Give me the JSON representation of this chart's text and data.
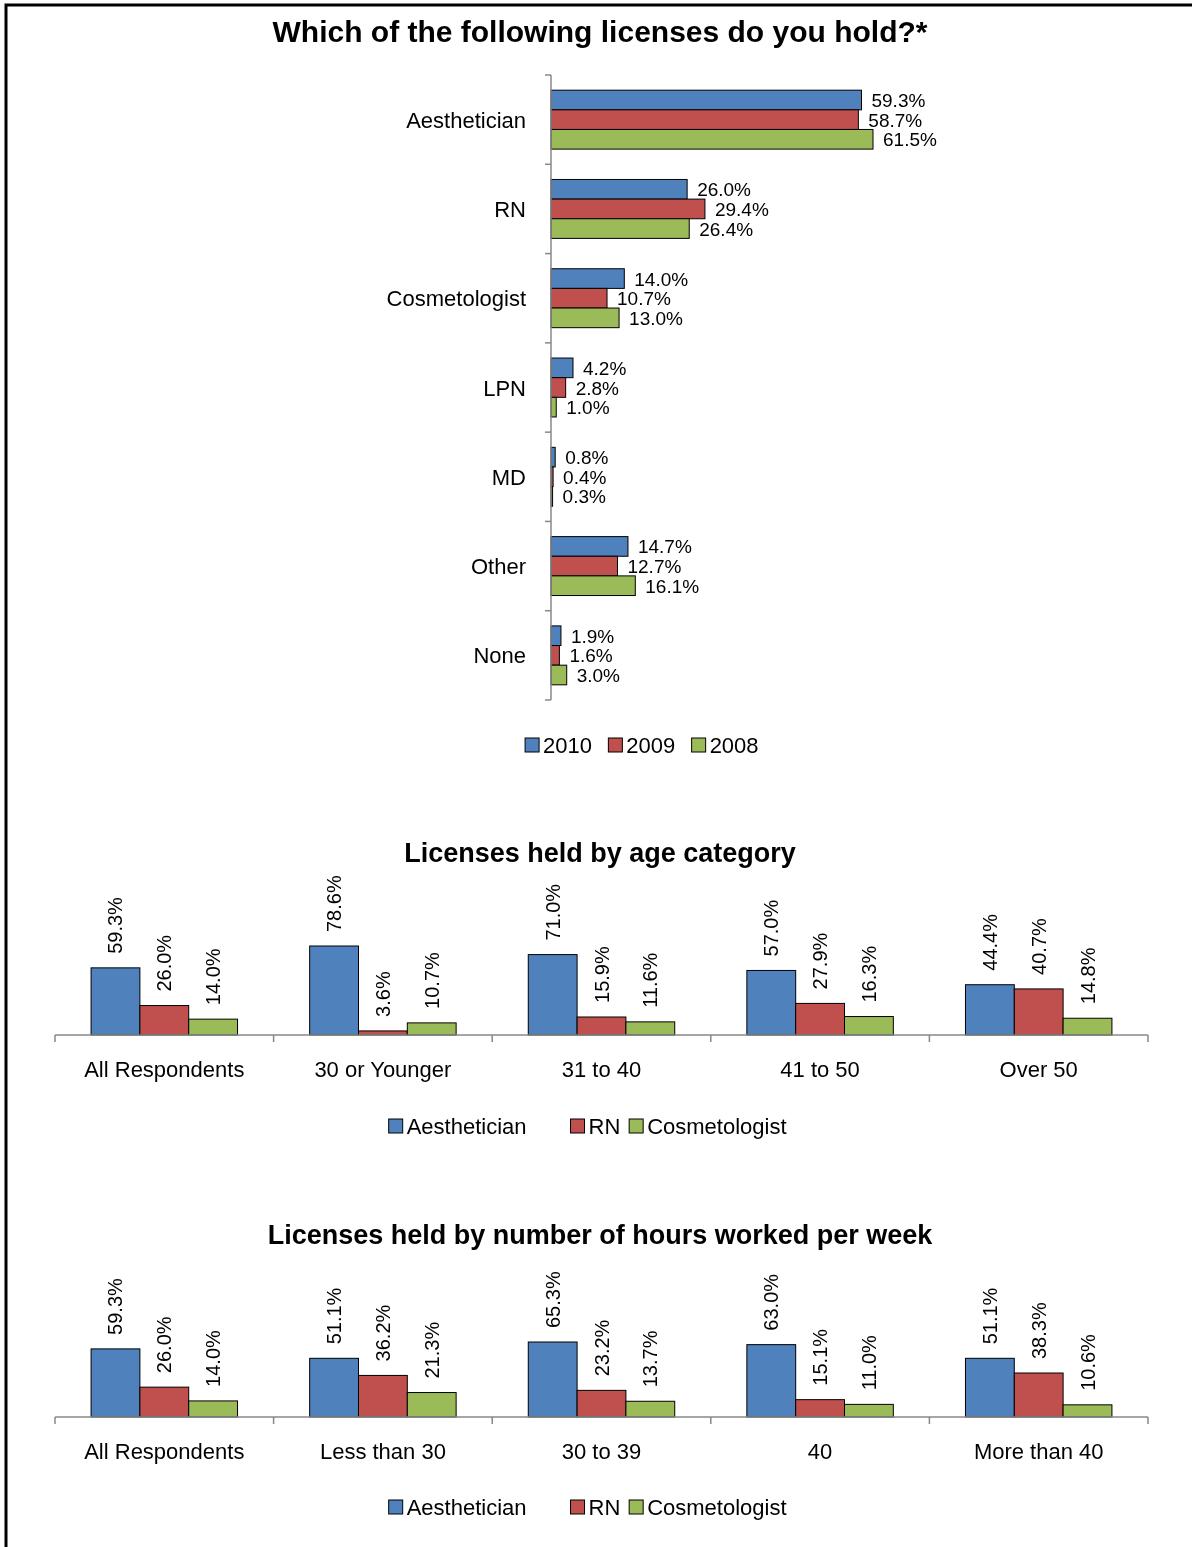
{
  "chart_data": [
    {
      "type": "bar",
      "orientation": "horizontal",
      "title": "Which of the following licenses do you hold?*",
      "categories": [
        "Aesthetician",
        "RN",
        "Cosmetologist",
        "LPN",
        "MD",
        "Other",
        "None"
      ],
      "legend": "bottom",
      "series": [
        {
          "name": "2010",
          "color": "#4f81bd",
          "values": [
            59.3,
            26.0,
            14.0,
            4.2,
            0.8,
            14.7,
            1.9
          ],
          "value_labels": [
            "59.3%",
            "26.0%",
            "14.0%",
            "4.2%",
            "0.8%",
            "14.7%",
            "1.9%"
          ]
        },
        {
          "name": "2009",
          "color": "#c0504d",
          "values": [
            58.7,
            29.4,
            10.7,
            2.8,
            0.4,
            12.7,
            1.6
          ],
          "value_labels": [
            "58.7%",
            "29.4%",
            "10.7%",
            "2.8%",
            "0.4%",
            "12.7%",
            "1.6%"
          ]
        },
        {
          "name": "2008",
          "color": "#9bbb59",
          "values": [
            61.5,
            26.4,
            13.0,
            1.0,
            0.3,
            16.1,
            3.0
          ],
          "value_labels": [
            "61.5%",
            "26.4%",
            "13.0%",
            "1.0%",
            "0.3%",
            "16.1%",
            "3.0%"
          ]
        }
      ]
    },
    {
      "type": "bar",
      "title": "Licenses held by age category",
      "categories": [
        "All Respondents",
        "30 or Younger",
        "31 to 40",
        "41 to 50",
        "Over 50"
      ],
      "legend": "bottom",
      "series": [
        {
          "name": "Aesthetician",
          "color": "#4f81bd",
          "values": [
            59.3,
            78.6,
            71.0,
            57.0,
            44.4
          ],
          "value_labels": [
            "59.3%",
            "78.6%",
            "71.0%",
            "57.0%",
            "44.4%"
          ]
        },
        {
          "name": "RN",
          "color": "#c0504d",
          "values": [
            26.0,
            3.6,
            15.9,
            27.9,
            40.7
          ],
          "value_labels": [
            "26.0%",
            "3.6%",
            "15.9%",
            "27.9%",
            "40.7%"
          ]
        },
        {
          "name": "Cosmetologist",
          "color": "#9bbb59",
          "values": [
            14.0,
            10.7,
            11.6,
            16.3,
            14.8
          ],
          "value_labels": [
            "14.0%",
            "10.7%",
            "11.6%",
            "16.3%",
            "14.8%"
          ]
        }
      ]
    },
    {
      "type": "bar",
      "title": "Licenses held by number of hours worked per week",
      "categories": [
        "All Respondents",
        "Less than 30",
        "30 to 39",
        "40",
        "More than 40"
      ],
      "legend": "bottom",
      "series": [
        {
          "name": "Aesthetician",
          "color": "#4f81bd",
          "values": [
            59.3,
            51.1,
            65.3,
            63.0,
            51.1
          ],
          "value_labels": [
            "59.3%",
            "51.1%",
            "65.3%",
            "63.0%",
            "51.1%"
          ]
        },
        {
          "name": "RN",
          "color": "#c0504d",
          "values": [
            26.0,
            36.2,
            23.2,
            15.1,
            38.3
          ],
          "value_labels": [
            "26.0%",
            "36.2%",
            "23.2%",
            "15.1%",
            "38.3%"
          ]
        },
        {
          "name": "Cosmetologist",
          "color": "#9bbb59",
          "values": [
            14.0,
            21.3,
            13.7,
            11.0,
            10.6
          ],
          "value_labels": [
            "14.0%",
            "21.3%",
            "13.7%",
            "11.0%",
            "10.6%"
          ]
        }
      ]
    }
  ]
}
